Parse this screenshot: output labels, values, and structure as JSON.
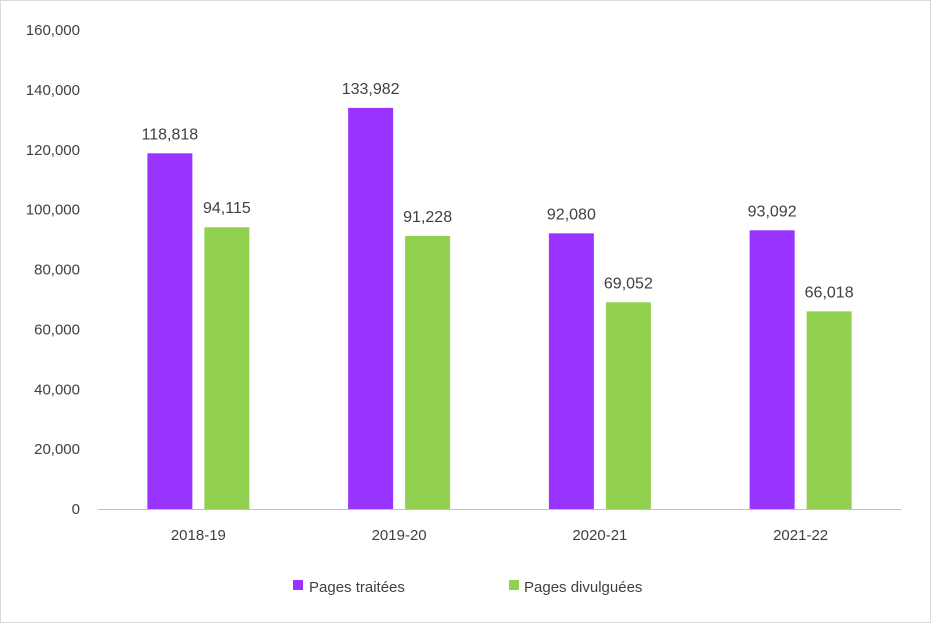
{
  "chart_data": {
    "type": "bar",
    "title": "",
    "xlabel": "",
    "ylabel": "",
    "categories": [
      "2018-19",
      "2019-20",
      "2020-21",
      "2021-22"
    ],
    "series": [
      {
        "name": "Pages traitées",
        "color": "#9933ff",
        "values": [
          118818,
          133982,
          92080,
          93092
        ],
        "labels": [
          "118,818",
          "133,982",
          "92,080",
          "93,092"
        ]
      },
      {
        "name": "Pages divulguées",
        "color": "#92d050",
        "values": [
          94115,
          91228,
          69052,
          66018
        ],
        "labels": [
          "94,115",
          "91,228",
          "69,052",
          "66,018"
        ]
      }
    ],
    "ylim": [
      0,
      160000
    ],
    "yticks": [
      0,
      20000,
      40000,
      60000,
      80000,
      100000,
      120000,
      140000,
      160000
    ],
    "ytick_labels": [
      "0",
      "20,000",
      "40,000",
      "60,000",
      "80,000",
      "100,000",
      "120,000",
      "140,000",
      "160,000"
    ],
    "grid": false,
    "legend_position": "bottom-center"
  }
}
